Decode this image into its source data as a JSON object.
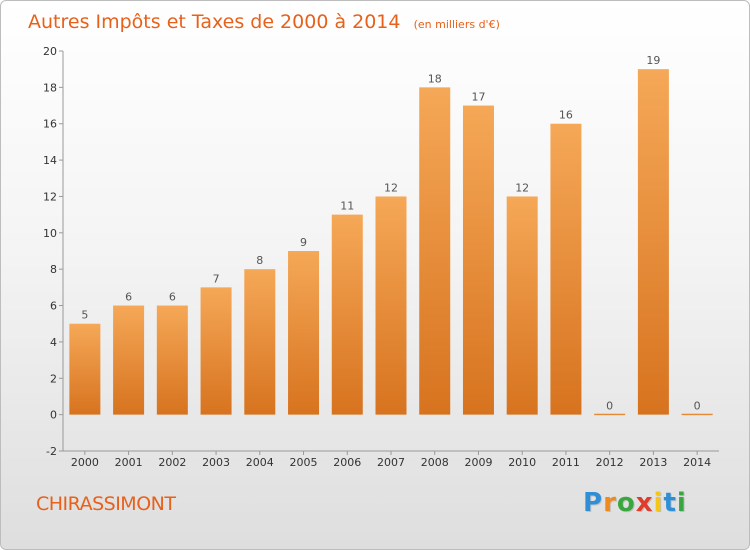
{
  "title": "Autres Impôts et Taxes de 2000 à 2014",
  "unit": "(en milliers d'€)",
  "commune": "CHIRASSIMONT",
  "logo": {
    "text": "Proxiti",
    "letters": [
      {
        "ch": "P",
        "color": "#2f8fd6"
      },
      {
        "ch": "r",
        "color": "#f08a1c"
      },
      {
        "ch": "o",
        "color": "#3aa640"
      },
      {
        "ch": "x",
        "color": "#e03c2c"
      },
      {
        "ch": "i",
        "color": "#f5c518"
      },
      {
        "ch": "t",
        "color": "#2f8fd6"
      },
      {
        "ch": "i",
        "color": "#3aa640"
      }
    ]
  },
  "colors": {
    "accent": "#e8611a",
    "bar_top": "#f5a857",
    "bar_bottom": "#d7731f"
  },
  "chart_data": {
    "type": "bar",
    "categories": [
      "2000",
      "2001",
      "2002",
      "2003",
      "2004",
      "2005",
      "2006",
      "2007",
      "2008",
      "2009",
      "2010",
      "2011",
      "2012",
      "2013",
      "2014"
    ],
    "values": [
      5,
      6,
      6,
      7,
      8,
      9,
      11,
      12,
      18,
      17,
      12,
      16,
      0,
      19,
      0
    ],
    "value_labels": [
      "5",
      "6",
      "6",
      "7",
      "8",
      "9",
      "11",
      "12",
      "18",
      "17",
      "12",
      "16",
      "0",
      "19",
      "0"
    ],
    "ylim": [
      -2,
      20
    ],
    "yticks": [
      -2,
      0,
      2,
      4,
      6,
      8,
      10,
      12,
      14,
      16,
      18,
      20
    ],
    "grid": false,
    "xlabel": "",
    "ylabel": ""
  }
}
